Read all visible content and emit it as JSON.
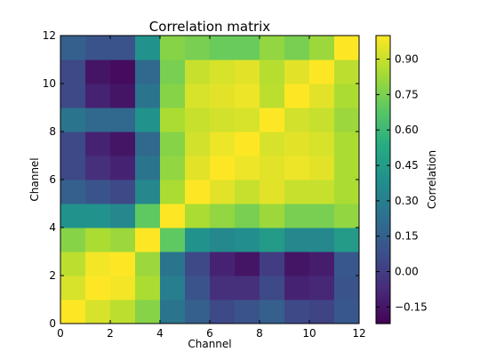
{
  "chart_data": {
    "type": "heatmap",
    "title": "Correlation matrix",
    "xlabel": "Channel",
    "ylabel": "Channel",
    "colorbar_label": "Correlation",
    "xlim": [
      0,
      12
    ],
    "ylim": [
      0,
      12
    ],
    "x_ticks": [
      "0",
      "2",
      "4",
      "6",
      "8",
      "10",
      "12"
    ],
    "y_ticks": [
      "0",
      "2",
      "4",
      "6",
      "8",
      "10",
      "12"
    ],
    "colorbar_ticks": [
      "−0.15",
      "0.00",
      "0.15",
      "0.30",
      "0.45",
      "0.60",
      "0.75",
      "0.90"
    ],
    "colorbar_tick_values": [
      -0.15,
      0.0,
      0.15,
      0.3,
      0.45,
      0.6,
      0.75,
      0.9
    ],
    "colorbar_range": [
      -0.22,
      1.0
    ],
    "colormap": "viridis",
    "grid": false,
    "rows_from_bottom": [
      [
        1.0,
        0.93,
        0.88,
        0.78,
        0.25,
        0.15,
        0.05,
        0.1,
        0.15,
        0.05,
        0.03,
        0.12
      ],
      [
        0.93,
        1.0,
        0.98,
        0.85,
        0.3,
        0.1,
        -0.05,
        -0.05,
        0.05,
        -0.1,
        -0.08,
        0.1
      ],
      [
        0.88,
        0.98,
        1.0,
        0.82,
        0.25,
        0.05,
        -0.1,
        -0.15,
        0.0,
        -0.15,
        -0.12,
        0.12
      ],
      [
        0.78,
        0.85,
        0.82,
        1.0,
        0.7,
        0.4,
        0.35,
        0.38,
        0.45,
        0.35,
        0.35,
        0.45
      ],
      [
        0.4,
        0.4,
        0.35,
        0.7,
        1.0,
        0.85,
        0.8,
        0.75,
        0.82,
        0.75,
        0.75,
        0.8
      ],
      [
        0.15,
        0.1,
        0.05,
        0.35,
        0.85,
        1.0,
        0.95,
        0.9,
        0.95,
        0.9,
        0.9,
        0.85
      ],
      [
        0.05,
        -0.05,
        -0.1,
        0.25,
        0.8,
        0.95,
        1.0,
        0.97,
        0.95,
        0.97,
        0.95,
        0.85
      ],
      [
        0.05,
        -0.1,
        -0.15,
        0.2,
        0.78,
        0.92,
        0.97,
        1.0,
        0.93,
        0.95,
        0.93,
        0.85
      ],
      [
        0.25,
        0.2,
        0.2,
        0.4,
        0.85,
        0.9,
        0.92,
        0.93,
        1.0,
        0.92,
        0.9,
        0.82
      ],
      [
        0.05,
        -0.1,
        -0.15,
        0.25,
        0.78,
        0.93,
        0.95,
        0.97,
        0.88,
        1.0,
        0.95,
        0.85
      ],
      [
        0.05,
        -0.15,
        -0.18,
        0.2,
        0.75,
        0.9,
        0.93,
        0.95,
        0.87,
        0.95,
        1.0,
        0.88
      ],
      [
        0.15,
        0.1,
        0.1,
        0.4,
        0.78,
        0.75,
        0.72,
        0.72,
        0.8,
        0.75,
        0.82,
        1.0
      ]
    ]
  }
}
